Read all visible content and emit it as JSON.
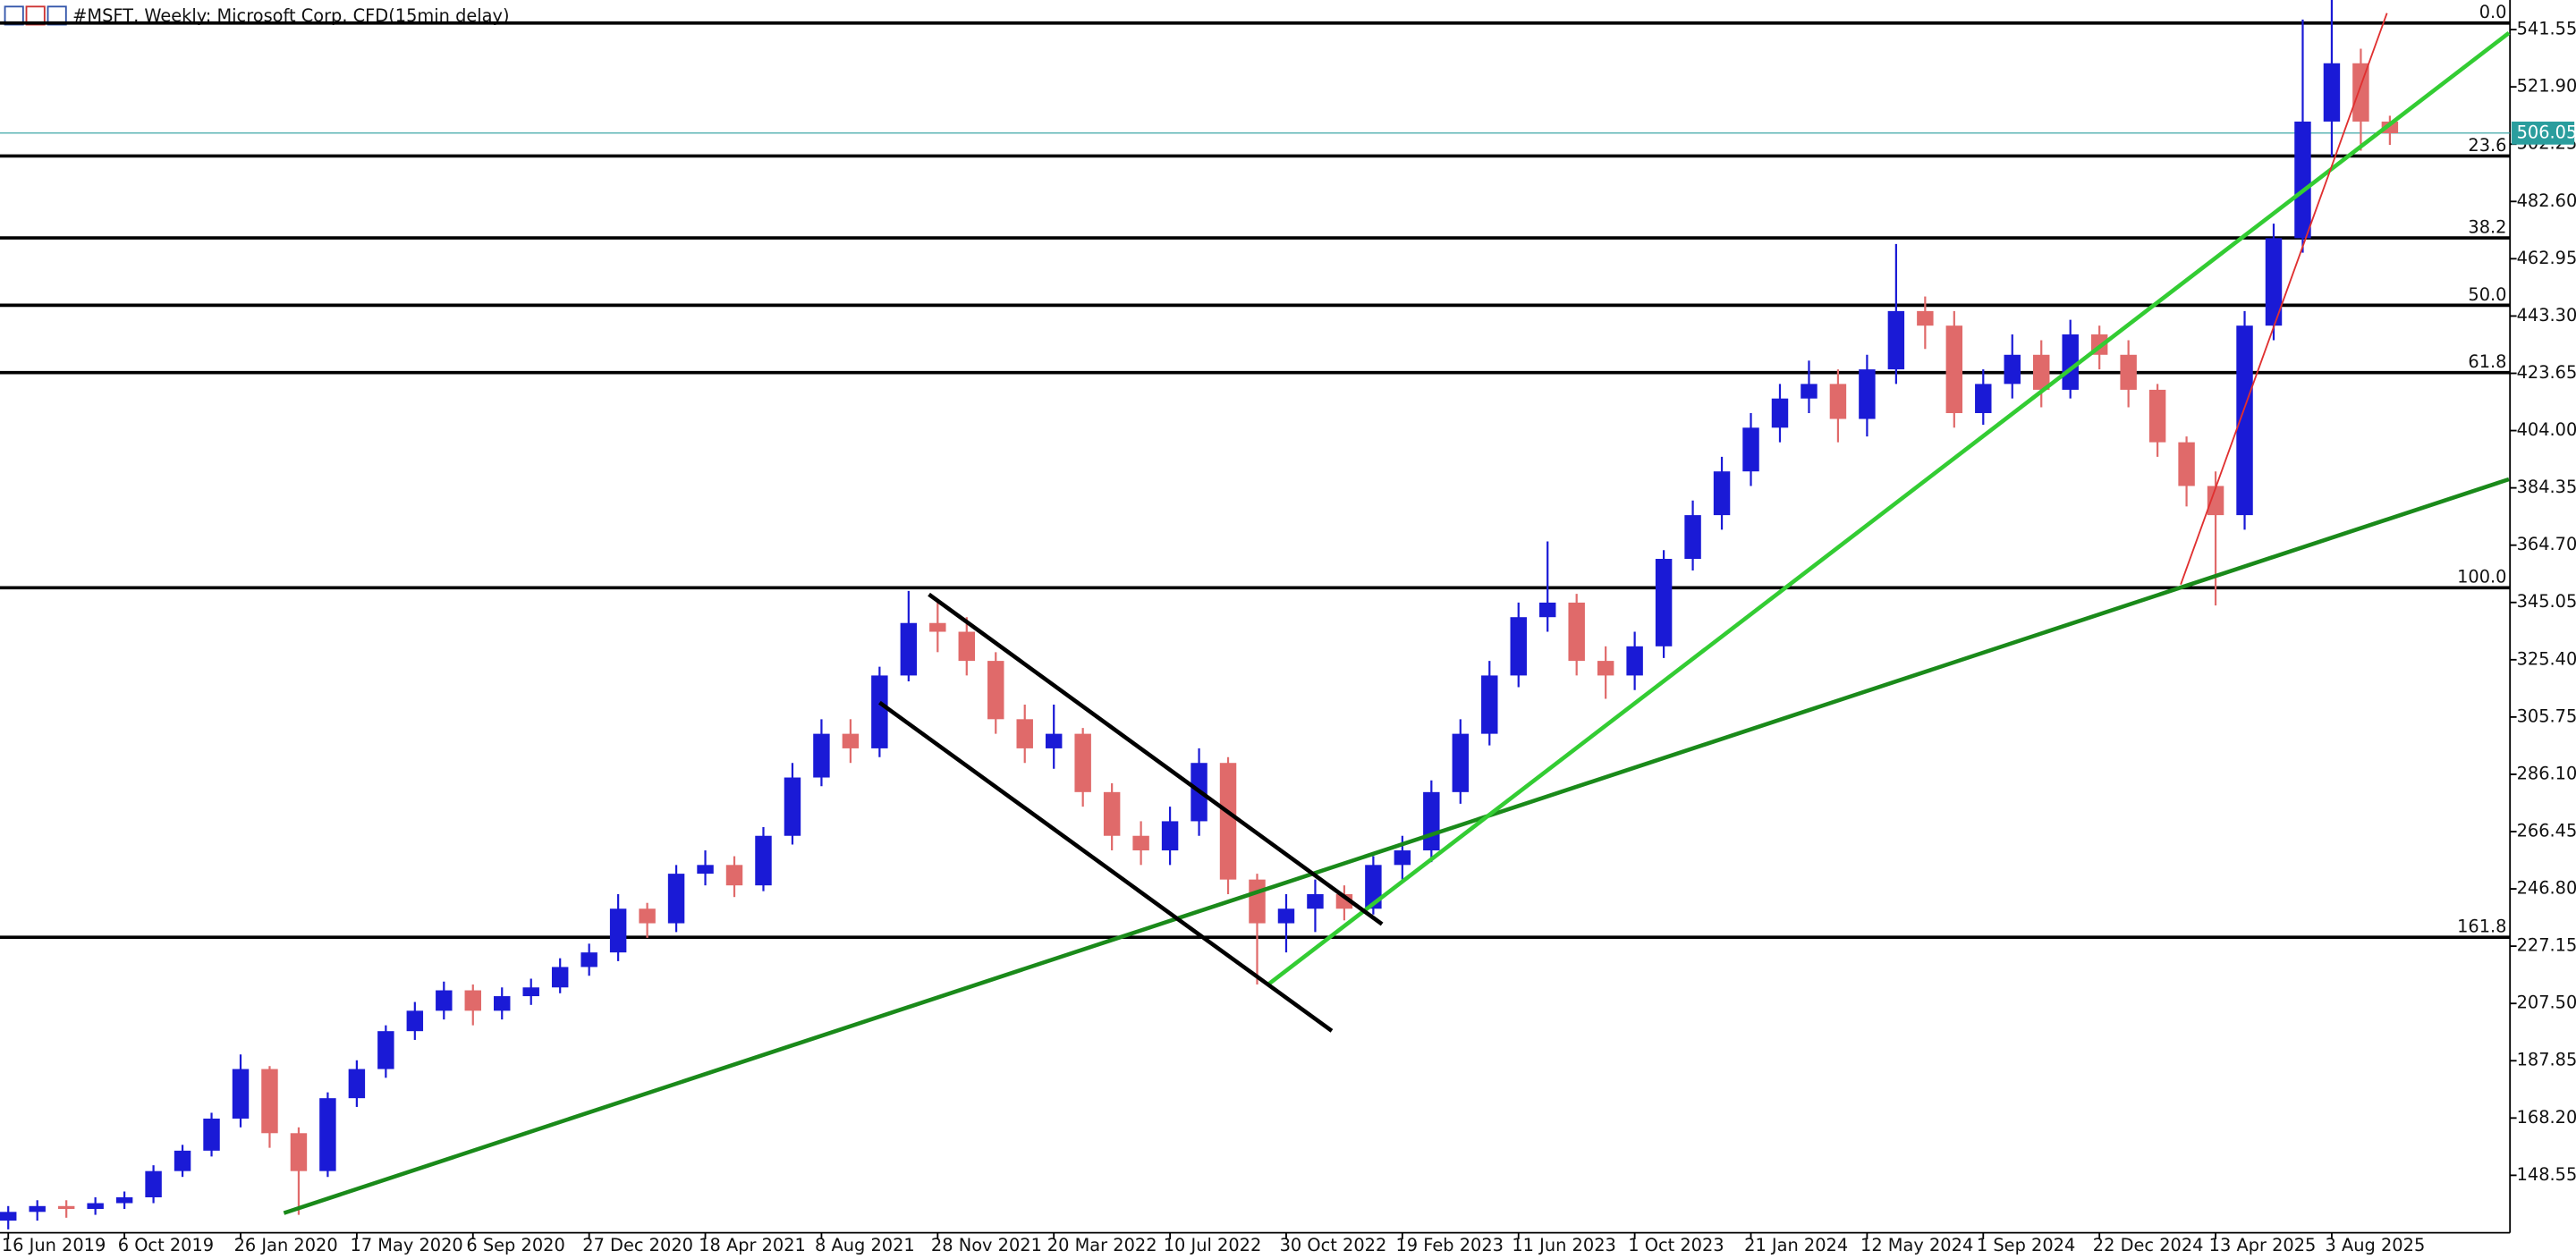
{
  "chart_data": {
    "type": "candlestick",
    "title": "#MSFT, Weekly:  Microsoft Corp. CFD(15min delay)",
    "categories": [
      "16 Jun 2019",
      null,
      null,
      null,
      "6 Oct 2019",
      null,
      null,
      null,
      "26 Jan 2020",
      null,
      null,
      null,
      "17 May 2020",
      null,
      null,
      null,
      "6 Sep 2020",
      null,
      null,
      null,
      "27 Dec 2020",
      null,
      null,
      null,
      "18 Apr 2021",
      null,
      null,
      null,
      "8 Aug 2021",
      null,
      null,
      null,
      "28 Nov 2021",
      null,
      null,
      null,
      "20 Mar 2022",
      null,
      null,
      null,
      "10 Jul 2022",
      null,
      null,
      null,
      "30 Oct 2022",
      null,
      null,
      null,
      "19 Feb 2023",
      null,
      null,
      null,
      "11 Jun 2023",
      null,
      null,
      null,
      "1 Oct 2023",
      null,
      null,
      null,
      "21 Jan 2024",
      null,
      null,
      null,
      "12 May 2024",
      null,
      null,
      null,
      "1 Sep 2024",
      null,
      null,
      null,
      "22 Dec 2024",
      null,
      null,
      null,
      "13 Apr 2025",
      null,
      null,
      null,
      "3 Aug 2025",
      null,
      null
    ],
    "open": [
      133,
      136,
      138,
      137,
      139,
      141,
      150,
      157,
      168,
      185,
      163,
      150,
      175,
      185,
      198,
      205,
      212,
      205,
      210,
      213,
      220,
      225,
      240,
      235,
      252,
      255,
      248,
      265,
      285,
      300,
      295,
      320,
      338,
      335,
      325,
      305,
      295,
      300,
      280,
      265,
      260,
      270,
      290,
      250,
      235,
      240,
      245,
      240,
      255,
      260,
      280,
      300,
      320,
      340,
      345,
      325,
      320,
      330,
      360,
      375,
      390,
      405,
      415,
      420,
      408,
      425,
      445,
      440,
      410,
      420,
      430,
      418,
      437,
      430,
      418,
      400,
      385,
      375,
      440,
      470,
      510,
      530,
      510
    ],
    "high": [
      138,
      140,
      140,
      141,
      143,
      152,
      159,
      170,
      190,
      186,
      165,
      177,
      188,
      200,
      208,
      215,
      214,
      213,
      216,
      223,
      228,
      245,
      242,
      255,
      260,
      258,
      268,
      290,
      305,
      305,
      323,
      349,
      345,
      340,
      328,
      310,
      310,
      302,
      283,
      270,
      275,
      295,
      292,
      252,
      245,
      250,
      248,
      258,
      265,
      284,
      305,
      325,
      345,
      366,
      348,
      330,
      335,
      363,
      380,
      395,
      410,
      420,
      428,
      425,
      430,
      468,
      450,
      445,
      425,
      437,
      435,
      442,
      440,
      435,
      420,
      402,
      390,
      445,
      475,
      545,
      555,
      535,
      512
    ],
    "low": [
      130,
      133,
      134,
      135,
      137,
      139,
      148,
      155,
      165,
      158,
      135,
      148,
      172,
      182,
      195,
      202,
      200,
      202,
      207,
      211,
      217,
      222,
      230,
      232,
      248,
      244,
      246,
      262,
      282,
      290,
      292,
      318,
      328,
      320,
      300,
      290,
      288,
      275,
      260,
      255,
      255,
      265,
      245,
      214,
      225,
      232,
      236,
      238,
      250,
      256,
      276,
      296,
      316,
      335,
      320,
      312,
      315,
      326,
      356,
      370,
      385,
      400,
      410,
      400,
      402,
      420,
      432,
      405,
      406,
      415,
      412,
      415,
      425,
      412,
      395,
      378,
      344,
      370,
      435,
      465,
      498,
      500,
      502
    ],
    "close": [
      136,
      138,
      137,
      139,
      141,
      150,
      157,
      168,
      185,
      163,
      150,
      175,
      185,
      198,
      205,
      212,
      205,
      210,
      213,
      220,
      225,
      240,
      235,
      252,
      255,
      248,
      265,
      285,
      300,
      295,
      320,
      338,
      335,
      325,
      305,
      295,
      300,
      280,
      265,
      260,
      270,
      290,
      250,
      235,
      240,
      245,
      240,
      255,
      260,
      280,
      300,
      320,
      340,
      345,
      325,
      320,
      330,
      360,
      375,
      390,
      405,
      415,
      420,
      408,
      425,
      445,
      440,
      410,
      420,
      430,
      418,
      437,
      430,
      418,
      400,
      385,
      375,
      440,
      470,
      510,
      530,
      510,
      506
    ],
    "up_color": "#1a1ad6",
    "down_color": "#e06a6a",
    "ylim": [
      128.85,
      551.7
    ],
    "yticks": [
      541.55,
      {
        "value": 521.9,
        "label": "521.90"
      },
      502.25,
      {
        "value": 482.6,
        "label": "482.60"
      },
      462.95,
      {
        "value": 443.3,
        "label": "443.30"
      },
      423.65,
      {
        "value": 404,
        "label": "404.00"
      },
      384.35,
      {
        "value": 364.7,
        "label": "364.70"
      },
      345.05,
      {
        "value": 325.4,
        "label": "325.40"
      },
      305.75,
      {
        "value": 286.1,
        "label": "286.10"
      },
      266.45,
      {
        "value": 246.8,
        "label": "246.80"
      },
      227.15,
      {
        "value": 207.5,
        "label": "207.50"
      },
      187.85,
      {
        "value": 168.2,
        "label": "168.20"
      },
      148.55
    ],
    "current_price": 506.05,
    "current_price_color": "#2a9d9d",
    "fib_levels": [
      {
        "label": "0.0",
        "price": 543.8
      },
      {
        "label": "23.6",
        "price": 498.2
      },
      {
        "label": "38.2",
        "price": 470.1
      },
      {
        "label": "50.0",
        "price": 447
      },
      {
        "label": "61.8",
        "price": 423.9
      },
      {
        "label": "100.0",
        "price": 350.1
      },
      {
        "label": "161.8",
        "price": 230.2
      }
    ],
    "trendlines": [
      {
        "color": "#1a8a1a",
        "from": [
          9.49,
          135.6
        ],
        "to": [
          86.1,
          387.3
        ]
      },
      {
        "color": "#33cc33",
        "from": [
          43.35,
          213.8
        ],
        "to": [
          86.1,
          540.4
        ]
      },
      {
        "color": "#000000",
        "from": [
          31.7,
          347.8
        ],
        "to": [
          47.3,
          234.7
        ]
      },
      {
        "color": "#000000",
        "from": [
          30.0,
          310.7
        ],
        "to": [
          45.57,
          198.1
        ]
      },
      {
        "color": "#e03030",
        "from": [
          74.8,
          351.2
        ],
        "to": [
          81.9,
          547.2
        ]
      }
    ]
  }
}
